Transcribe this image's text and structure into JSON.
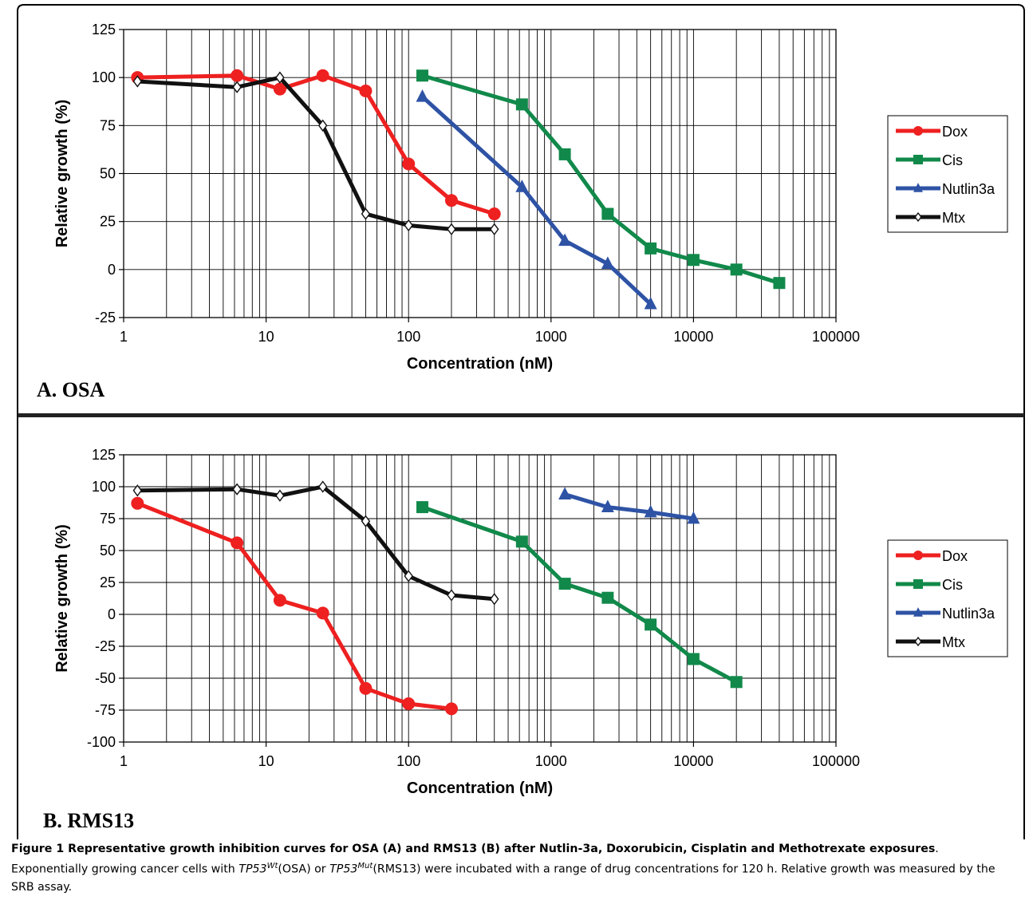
{
  "chart_data": [
    {
      "type": "line",
      "panel_label": "A. OSA",
      "xlabel": "Concentration (nM)",
      "ylabel": "Relative growth (%)",
      "xscale": "log",
      "xlim": [
        1,
        100000
      ],
      "ylim": [
        -25,
        125
      ],
      "xticks": [
        "1",
        "10",
        "100",
        "1000",
        "10000",
        "100000"
      ],
      "yticks": [
        "-25",
        "0",
        "25",
        "50",
        "75",
        "100",
        "125"
      ],
      "grid": true,
      "legend_position": "right",
      "series": [
        {
          "name": "Dox",
          "color": "#ee2020",
          "marker": "circle",
          "x": [
            1.25,
            6.25,
            12.5,
            25,
            50,
            100,
            200,
            400
          ],
          "y": [
            100,
            101,
            94,
            101,
            93,
            55,
            36,
            29
          ]
        },
        {
          "name": "Cis",
          "color": "#11894a",
          "marker": "square",
          "x": [
            125,
            625,
            1250,
            2500,
            5000,
            10000,
            20000,
            40000
          ],
          "y": [
            101,
            86,
            60,
            29,
            11,
            5,
            0,
            -7
          ]
        },
        {
          "name": "Nutlin3a",
          "color": "#2e53a5",
          "marker": "triangle",
          "x": [
            125,
            625,
            1250,
            2500,
            5000
          ],
          "y": [
            90,
            43,
            15,
            3,
            -18
          ]
        },
        {
          "name": "Mtx",
          "color": "#111111",
          "marker": "diamond",
          "x": [
            1.25,
            6.25,
            12.5,
            25,
            50,
            100,
            200,
            400
          ],
          "y": [
            98,
            95,
            100,
            75,
            29,
            23,
            21,
            21
          ]
        }
      ]
    },
    {
      "type": "line",
      "panel_label": "B. RMS13",
      "xlabel": "Concentration (nM)",
      "ylabel": "Relative growth (%)",
      "xscale": "log",
      "xlim": [
        1,
        100000
      ],
      "ylim": [
        -100,
        125
      ],
      "xticks": [
        "1",
        "10",
        "100",
        "1000",
        "10000",
        "100000"
      ],
      "yticks": [
        "-100",
        "-75",
        "-50",
        "-25",
        "0",
        "25",
        "50",
        "75",
        "100",
        "125"
      ],
      "grid": true,
      "legend_position": "right",
      "series": [
        {
          "name": "Dox",
          "color": "#ee2020",
          "marker": "circle",
          "x": [
            1.25,
            6.25,
            12.5,
            25,
            50,
            100,
            200
          ],
          "y": [
            87,
            56,
            11,
            1,
            -58,
            -70,
            -74
          ]
        },
        {
          "name": "Cis",
          "color": "#11894a",
          "marker": "square",
          "x": [
            125,
            625,
            1250,
            2500,
            5000,
            10000,
            20000
          ],
          "y": [
            84,
            57,
            24,
            13,
            -8,
            -35,
            -53
          ]
        },
        {
          "name": "Nutlin3a",
          "color": "#2e53a5",
          "marker": "triangle",
          "x": [
            1250,
            2500,
            5000,
            10000
          ],
          "y": [
            94,
            84,
            80,
            75
          ]
        },
        {
          "name": "Mtx",
          "color": "#111111",
          "marker": "diamond",
          "x": [
            1.25,
            6.25,
            12.5,
            25,
            50,
            100,
            200,
            400
          ],
          "y": [
            97,
            98,
            93,
            100,
            73,
            30,
            15,
            12
          ]
        }
      ]
    }
  ],
  "caption": {
    "title": "Figure 1 Representative growth inhibition curves for OSA (A) and RMS13 (B) after Nutlin-3a, Doxorubicin, Cisplatin and Methotrexate exposures",
    "body_1": ". Exponentially growing cancer cells with ",
    "gene_a": "TP53",
    "sup_a": "Wt",
    "body_2": "(OSA) or ",
    "gene_b": "TP53",
    "sup_b": "Mut",
    "body_3": "(RMS13) were incubated with a range of drug concentrations for 120 h. Relative growth was measured by the SRB assay."
  }
}
